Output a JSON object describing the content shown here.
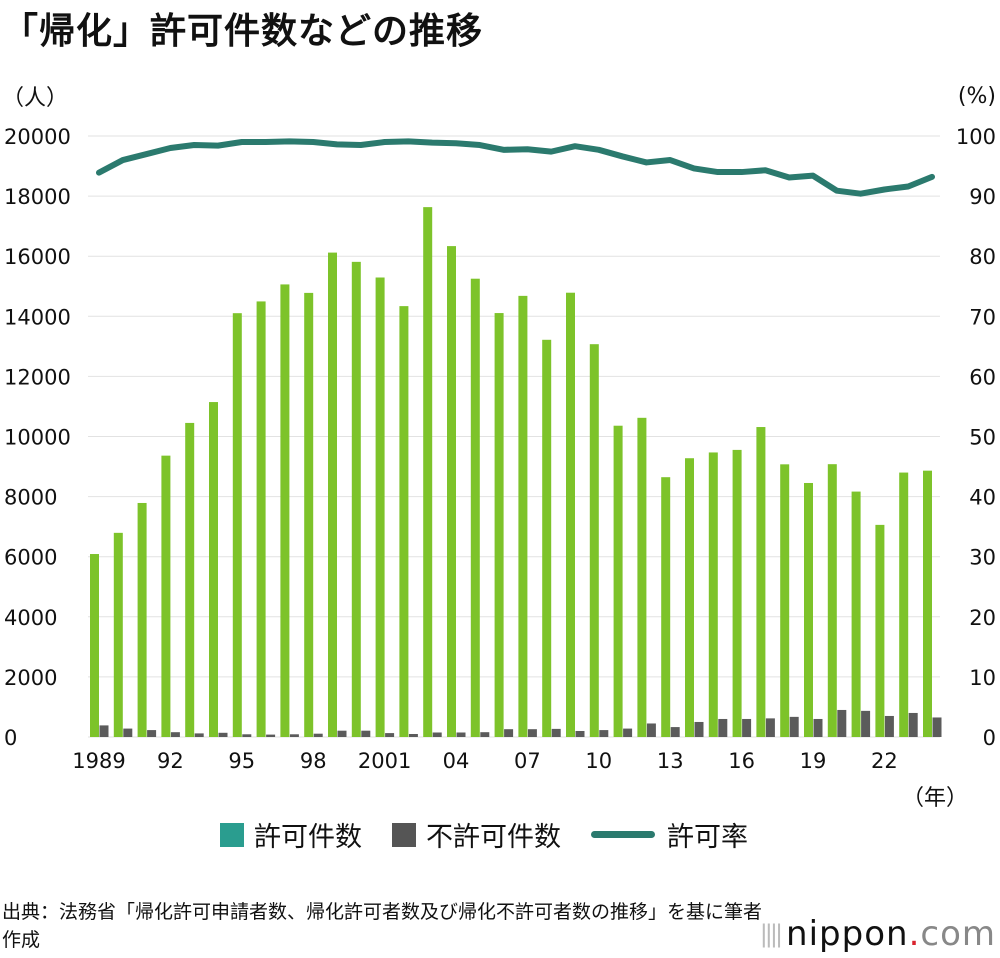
{
  "title": "「帰化」許可件数などの推移",
  "units": {
    "left": "（人）",
    "right": "(%)",
    "x": "（年）"
  },
  "legend": [
    {
      "label": "許可件数",
      "color": "#2a9d8f",
      "kind": "box"
    },
    {
      "label": "不許可件数",
      "color": "#555555",
      "kind": "box"
    },
    {
      "label": "許可率",
      "color": "#2b7a6e",
      "kind": "line"
    }
  ],
  "source": "出典：法務省「帰化許可申請者数、帰化許可者数及び帰化不許可者数の推移」を基に筆者作成",
  "logo": {
    "ticks": "||||",
    "main": "nippon",
    "dot": ".",
    "suffix": "com"
  },
  "chart_data": {
    "type": "bar+line",
    "x": [
      1989,
      1990,
      1991,
      1992,
      1993,
      1994,
      1995,
      1996,
      1997,
      1998,
      1999,
      2000,
      2001,
      2002,
      2003,
      2004,
      2005,
      2006,
      2007,
      2008,
      2009,
      2010,
      2011,
      2012,
      2013,
      2014,
      2015,
      2016,
      2017,
      2018,
      2019,
      2020,
      2021,
      2022,
      2023,
      2024
    ],
    "xtick_labels": [
      {
        "year": 1989,
        "label": "1989"
      },
      {
        "year": 1992,
        "label": "92"
      },
      {
        "year": 1995,
        "label": "95"
      },
      {
        "year": 1998,
        "label": "98"
      },
      {
        "year": 2001,
        "label": "2001"
      },
      {
        "year": 2004,
        "label": "04"
      },
      {
        "year": 2007,
        "label": "07"
      },
      {
        "year": 2010,
        "label": "10"
      },
      {
        "year": 2013,
        "label": "13"
      },
      {
        "year": 2016,
        "label": "16"
      },
      {
        "year": 2019,
        "label": "19"
      },
      {
        "year": 2022,
        "label": "22"
      }
    ],
    "series": [
      {
        "name": "許可件数",
        "axis": "left",
        "type": "bar",
        "color": "#7dc32a",
        "values": [
          6089,
          6794,
          7788,
          9363,
          10452,
          11146,
          14104,
          14495,
          15061,
          14779,
          16120,
          15812,
          15291,
          14339,
          17633,
          16336,
          15251,
          14108,
          14680,
          13218,
          14785,
          13072,
          10359,
          10622,
          8646,
          9277,
          9469,
          9554,
          10315,
          9074,
          8453,
          9079,
          8167,
          7059,
          8800,
          8863
        ]
      },
      {
        "name": "不許可件数",
        "axis": "left",
        "type": "bar",
        "color": "#5b5b5b",
        "values": [
          386,
          280,
          230,
          160,
          120,
          140,
          90,
          80,
          90,
          110,
          210,
          210,
          130,
          100,
          150,
          150,
          160,
          260,
          260,
          270,
          200,
          230,
          280,
          450,
          330,
          500,
          600,
          600,
          620,
          670,
          600,
          900,
          870,
          700,
          800,
          650
        ]
      },
      {
        "name": "許可率",
        "axis": "right",
        "type": "line",
        "color": "#2b7a6e",
        "values": [
          93.9,
          96.0,
          97.0,
          98.0,
          98.5,
          98.4,
          99.0,
          99.0,
          99.1,
          99.0,
          98.6,
          98.5,
          99.0,
          99.1,
          98.9,
          98.8,
          98.5,
          97.7,
          97.8,
          97.4,
          98.3,
          97.7,
          96.6,
          95.6,
          96.0,
          94.6,
          94.0,
          94.0,
          94.3,
          93.1,
          93.4,
          90.9,
          90.4,
          91.1,
          91.6,
          93.2
        ]
      }
    ],
    "yleft": {
      "min": 0,
      "max": 20000,
      "ticks": [
        0,
        2000,
        4000,
        6000,
        8000,
        10000,
        12000,
        14000,
        16000,
        18000,
        20000
      ]
    },
    "yright": {
      "min": 0,
      "max": 100,
      "ticks": [
        0,
        10,
        20,
        30,
        40,
        50,
        60,
        70,
        80,
        90,
        100
      ]
    },
    "gridlines": true
  }
}
